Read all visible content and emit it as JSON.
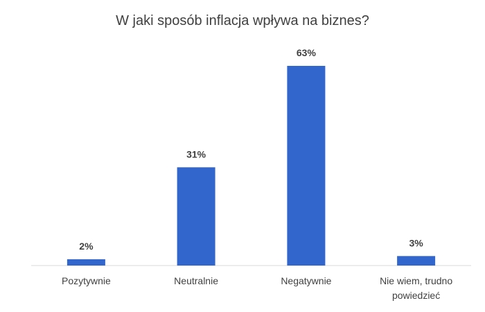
{
  "chart_data": {
    "type": "bar",
    "title": "W jaki sposób inflacja wpływa na biznes?",
    "xlabel": "",
    "ylabel": "",
    "categories": [
      "Pozytywnie",
      "Neutralnie",
      "Negatywnie",
      "Nie wiem, trudno powiedzieć"
    ],
    "category_lines": [
      [
        "Pozytywnie"
      ],
      [
        "Neutralnie"
      ],
      [
        "Negatywnie"
      ],
      [
        "Nie wiem, trudno",
        "powiedzieć"
      ]
    ],
    "values": [
      2,
      31,
      63,
      3
    ],
    "data_labels": [
      "2%",
      "31%",
      "63%",
      "3%"
    ],
    "ylim": [
      0,
      63
    ],
    "grid": false,
    "legend": "none",
    "colors": {
      "bar": "#3366CC",
      "axis": "#D9D9D9",
      "text": "#404040"
    }
  }
}
